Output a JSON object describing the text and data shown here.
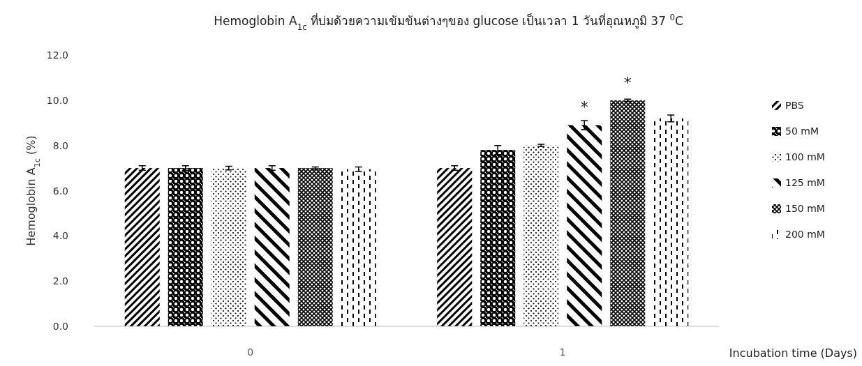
{
  "chart_data": {
    "type": "bar",
    "title": "Hemoglobin A$_{1c}$ ที่บ่มด้วยความเข้มข้นต่างๆของ glucose เป็นเวลา 1 วันที่อุณหภูมิ 37 $^{0}$C",
    "xlabel": "Incubation time (Days)",
    "ylabel": "Hemoglobin A$_{1c}$ (%)",
    "categories": [
      "0",
      "1"
    ],
    "series": [
      {
        "name": "PBS",
        "color": "#000000",
        "values": [
          7.0,
          7.0
        ],
        "errors": [
          0.1,
          0.1
        ]
      },
      {
        "name": "50 mM",
        "color": "#000000",
        "values": [
          7.0,
          7.8
        ],
        "errors": [
          0.1,
          0.2
        ]
      },
      {
        "name": "100 mM",
        "color": "#000000",
        "values": [
          7.0,
          8.0
        ],
        "errors": [
          0.08,
          0.05
        ]
      },
      {
        "name": "125 mM",
        "color": "#000000",
        "values": [
          7.0,
          8.9
        ],
        "errors": [
          0.1,
          0.2
        ],
        "value_labels": [
          null,
          "*"
        ]
      },
      {
        "name": "150 mM",
        "color": "#000000",
        "values": [
          7.0,
          10.0
        ],
        "errors": [
          0.05,
          0.05
        ],
        "value_labels": [
          null,
          "*"
        ]
      },
      {
        "name": "200 mM",
        "color": "#000000",
        "values": [
          6.95,
          9.2
        ],
        "errors": [
          0.1,
          0.15
        ]
      }
    ],
    "ylim": [
      0,
      12
    ],
    "yticks": [
      {
        "value": 0,
        "label": "0.0"
      },
      {
        "value": 2,
        "label": "2.0"
      },
      {
        "value": 4,
        "label": "4.0"
      },
      {
        "value": 6,
        "label": "6.0"
      },
      {
        "value": 8,
        "label": "8.0"
      },
      {
        "value": 10,
        "label": "10.0"
      },
      {
        "value": 12,
        "label": "12.0"
      }
    ],
    "legend": "right",
    "grid": false
  }
}
